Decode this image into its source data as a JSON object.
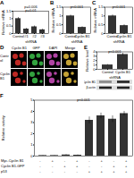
{
  "chart_data": [
    {
      "panel": "A",
      "type": "bar",
      "categories": [
        "Control",
        "#1",
        "#2",
        "#3"
      ],
      "values": [
        1.0,
        0.3,
        0.45,
        0.25
      ],
      "errors": [
        0.08,
        0.05,
        0.06,
        0.04
      ],
      "color": "#333333",
      "ylim": [
        0,
        1.5
      ],
      "yticks": [
        0,
        0.5,
        1,
        1.5
      ],
      "y_label": "Relative mRNA",
      "x_label": "shRNA",
      "annotations": [
        "p=0.006",
        "p=0.01"
      ]
    },
    {
      "panel": "B",
      "type": "bar",
      "categories": [
        "Control",
        "Cyclin B1"
      ],
      "values": [
        1.0,
        0.35
      ],
      "errors": [
        0.05,
        0.04
      ],
      "color": "#333333",
      "ylim": [
        0,
        1.5
      ],
      "yticks": [
        0,
        0.5,
        1,
        1.5
      ],
      "y_label": "Relative mRNA",
      "x_label": "shRNA",
      "annotations": [
        "p<0.001"
      ]
    },
    {
      "panel": "C",
      "type": "bar",
      "categories": [
        "Control",
        "Cyclin B1"
      ],
      "values": [
        1.0,
        0.45
      ],
      "errors": [
        0.06,
        0.05
      ],
      "color": "#333333",
      "ylim": [
        0,
        1.5
      ],
      "yticks": [
        0,
        0.5,
        1,
        1.5
      ],
      "y_label": "Relative mRNA",
      "x_label": "shRNA",
      "annotations": [
        "p<0.001"
      ]
    },
    {
      "panel": "E",
      "type": "bar",
      "categories": [
        "Control",
        "Cyclin B1"
      ],
      "values": [
        1.0,
        3.4
      ],
      "errors": [
        0.1,
        0.3
      ],
      "color": "#333333",
      "ylim": [
        0,
        4
      ],
      "yticks": [
        0,
        1,
        2,
        3,
        4
      ],
      "y_label": "Relative level",
      "x_label": "shRNA",
      "annotations": [
        "p<0.001"
      ],
      "blot": [
        "Cyclin B1",
        "β-actin"
      ]
    },
    {
      "panel": "F",
      "type": "bar",
      "categories": [
        null,
        null,
        null,
        null,
        null,
        null,
        null,
        null
      ],
      "values": [
        0.05,
        0.05,
        0.1,
        0.08,
        3.2,
        3.6,
        3.3,
        3.8
      ],
      "errors": [
        0.02,
        0.02,
        0.03,
        0.03,
        0.3,
        0.25,
        0.3,
        0.2
      ],
      "color": "#333333",
      "ylim": [
        0,
        5
      ],
      "yticks": [
        0,
        1,
        2,
        3,
        4,
        5
      ],
      "y_label": "Relative activity",
      "tick_labels": "y",
      "annotations": [
        "p<0.001"
      ],
      "table": [
        {
          "label": "Myc-Cyclin B1",
          "signs": [
            "-",
            "+",
            "-",
            "+",
            "-",
            "+",
            "-",
            "+"
          ]
        },
        {
          "label": "Cyclin B1-GFP",
          "signs": [
            "-",
            "-",
            "+",
            "+",
            "-",
            "-",
            "+",
            "+"
          ]
        },
        {
          "label": "p53",
          "signs": [
            "-",
            "-",
            "-",
            "-",
            "+",
            "+",
            "+",
            "+"
          ]
        }
      ]
    }
  ],
  "images": {
    "panel": "D",
    "columns": [
      "Cyclin B1",
      "GFP",
      "DAPI",
      "Merge"
    ],
    "rows": [
      "Control",
      "Cyclin B1"
    ],
    "colors": [
      "#e0302a",
      "#3cc04a",
      "#d050c0",
      "#e8c040"
    ]
  }
}
